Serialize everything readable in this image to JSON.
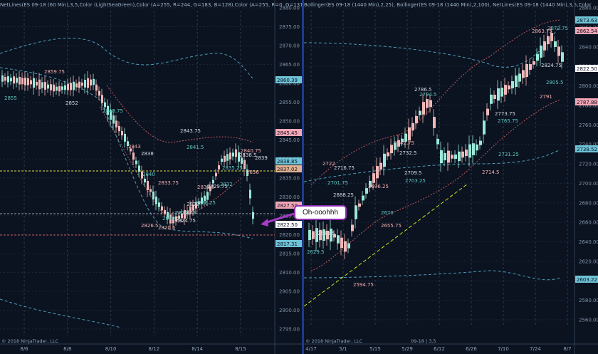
{
  "left_chart": {
    "header": "NetLines(ES 09-18 (60 Min),3,5,Color (LightSeaGreen),Color (A=255, R=244, G=183, B=128),Color (A=255, R=0, G=131,",
    "copyright": "© 2018 NinjaTrader, LLC",
    "y_ticks": [
      "2880.00",
      "2875.00",
      "2870.00",
      "2865.00",
      "2860.00",
      "2855.00",
      "2850.00",
      "2845.00",
      "2840.00",
      "2835.00",
      "2830.00",
      "2825.00",
      "2820.00",
      "2815.00",
      "2810.00",
      "2805.00",
      "2800.00",
      "2795.00"
    ],
    "x_ticks": [
      "8/6",
      "8/8",
      "8/10",
      "8/12",
      "8/14",
      "8/15"
    ],
    "price_tags": [
      {
        "text": "2860.39",
        "color": "#6fc3d6"
      },
      {
        "text": "2845.45",
        "color": "#f3a6b6"
      },
      {
        "text": "2838.85",
        "color": "#6fc3d6"
      },
      {
        "text": "2837.02",
        "color": "#e0b090"
      },
      {
        "text": "2827.50",
        "color": "#f3a6b6"
      },
      {
        "text": "2822.50",
        "color": "#ffffff"
      },
      {
        "text": "2817.31",
        "color": "#6fc3d6"
      }
    ],
    "annotations": [
      "2855",
      "2859.75",
      "2852",
      "2848.75",
      "2843",
      "2838",
      "2840",
      "2833.75",
      "2832",
      "2829.5",
      "2826.5",
      "2824.75",
      "2822.75",
      "2820.5",
      "2843.75",
      "2841.5",
      "2835.5",
      "2829.75",
      "2826.25",
      "2840.75",
      "2838.5",
      "2835.25",
      "2836",
      "2839",
      "2832"
    ]
  },
  "right_chart": {
    "header": "Bollinger(ES 09-18 (1440 Min),2,25), Bollinger(ES 09-18 (1440 Min),2,100), NetLines(ES 09-18 (1440 Min),3,5,Color",
    "copyright": "© 2018 NinjaTrader, LLC",
    "bar_info": "09-18 | 3.5",
    "y_ticks": [
      "2880.00",
      "2860.00",
      "2840.00",
      "2820.00",
      "2800.00",
      "2780.00",
      "2760.00",
      "2740.00",
      "2720.00",
      "2700.00",
      "2680.00",
      "2660.00",
      "2640.00",
      "2620.00",
      "2600.00",
      "2580.00",
      "2560.00"
    ],
    "x_ticks": [
      "4/17",
      "5/1",
      "5/15",
      "5/29",
      "6/12",
      "6/26",
      "7/10",
      "7/24",
      "8/7"
    ],
    "price_tags": [
      {
        "text": "2873.63",
        "color": "#6fc3d6"
      },
      {
        "text": "2862.54",
        "color": "#f3a6b6"
      },
      {
        "text": "2822.50",
        "color": "#ffffff"
      },
      {
        "text": "2787.88",
        "color": "#f3a6b6"
      },
      {
        "text": "2738.52",
        "color": "#6fc3d6"
      },
      {
        "text": "2603.22",
        "color": "#6fc3d6"
      }
    ],
    "annotations": [
      "2873.75",
      "2863.75",
      "2824.75",
      "2805.5",
      "2791",
      "2773.75",
      "2765.75",
      "2742.75",
      "2732.5",
      "2731.25",
      "2722",
      "2716.75",
      "2701.75",
      "2696.25",
      "2688.25",
      "2670",
      "2655.75",
      "2643.5",
      "2629.5",
      "2594.75",
      "2709.5",
      "2703.25",
      "2714.5",
      "2786.5",
      "2794.5"
    ]
  },
  "callout": {
    "text": "Oh-ooohhh",
    "border_color": "#8e2db0",
    "arrow_color": "#a83cc8"
  },
  "trendline_color": "#d4e020"
}
